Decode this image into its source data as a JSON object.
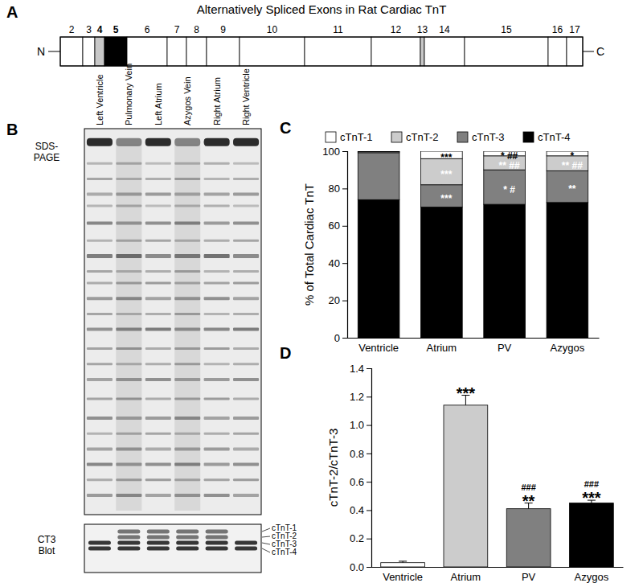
{
  "diagram": {
    "panel_label": "A",
    "title": "Alternatively Spliced Exons in Rat Cardiac TnT",
    "n_label": "N",
    "c_label": "C",
    "exons": [
      {
        "label": "2",
        "fill": "#ffffff",
        "bold": false
      },
      {
        "label": "3",
        "fill": "#ffffff",
        "bold": false
      },
      {
        "label": "4",
        "fill": "#c8c8c8",
        "bold": true
      },
      {
        "label": "5",
        "fill": "#000000",
        "bold": true
      },
      {
        "label": "6",
        "fill": "#ffffff",
        "bold": false
      },
      {
        "label": "7",
        "fill": "#ffffff",
        "bold": false
      },
      {
        "label": "8",
        "fill": "#ffffff",
        "bold": false
      },
      {
        "label": "9",
        "fill": "#ffffff",
        "bold": false
      },
      {
        "label": "10",
        "fill": "#ffffff",
        "bold": false
      },
      {
        "label": "11",
        "fill": "#ffffff",
        "bold": false
      },
      {
        "label": "12",
        "fill": "#ffffff",
        "bold": false
      },
      {
        "label": "13",
        "fill": "#c8c8c8",
        "bold": false
      },
      {
        "label": "14",
        "fill": "#ffffff",
        "bold": false
      },
      {
        "label": "15",
        "fill": "#ffffff",
        "bold": false
      },
      {
        "label": "16",
        "fill": "#ffffff",
        "bold": false
      },
      {
        "label": "17",
        "fill": "#ffffff",
        "bold": false
      }
    ]
  },
  "gel": {
    "panel_label": "B",
    "gel_label": [
      "SDS-",
      "PAGE"
    ],
    "blot_label": [
      "CT3",
      "Blot"
    ],
    "isoforms": [
      "cTnT-1",
      "cTnT-2",
      "cTnT-3",
      "cTnT-4"
    ],
    "lanes": [
      {
        "label": "Left Ventricle",
        "bands": [
          false,
          false,
          true,
          true
        ]
      },
      {
        "label": "Pulmonary Vein",
        "bands": [
          true,
          true,
          true,
          true
        ]
      },
      {
        "label": "Left Atrium",
        "bands": [
          true,
          true,
          true,
          true
        ]
      },
      {
        "label": "Azygos Vein",
        "bands": [
          true,
          true,
          true,
          true
        ]
      },
      {
        "label": "Right Atrium",
        "bands": [
          true,
          true,
          true,
          true
        ]
      },
      {
        "label": "Right Ventricle",
        "bands": [
          false,
          false,
          true,
          true
        ]
      }
    ]
  },
  "chart_data": [
    {
      "type": "bar",
      "stacked": true,
      "panel_label": "C",
      "y_label": "% of Total Cardiac TnT",
      "legend": "top",
      "categories": [
        "Ventricle",
        "Atrium",
        "PV",
        "Azygos"
      ],
      "ylim": [
        0,
        100
      ],
      "yticks": [
        0,
        20,
        40,
        60,
        80,
        100
      ],
      "series": [
        {
          "name": "cTnT-1",
          "color": "#ffffff",
          "values": [
            0.3,
            4,
            2.5,
            2.5
          ],
          "errors": [
            0.3,
            1,
            1.5,
            1
          ],
          "annotations": [
            null,
            "***",
            "* ##",
            "*"
          ]
        },
        {
          "name": "cTnT-2",
          "color": "#cccccc",
          "values": [
            0.5,
            14,
            7.5,
            8
          ],
          "errors": [
            0.3,
            2,
            1.5,
            1.5
          ],
          "annotations": [
            null,
            "***",
            "** ##",
            "** ##"
          ]
        },
        {
          "name": "cTnT-3",
          "color": "#808080",
          "values": [
            25.2,
            12,
            18.5,
            17
          ],
          "errors": [
            1,
            1.5,
            2,
            1.5
          ],
          "annotations": [
            null,
            "***",
            "* #",
            "**"
          ]
        },
        {
          "name": "cTnT-4",
          "color": "#000000",
          "values": [
            74,
            70,
            71.5,
            72.5
          ],
          "errors": [
            1,
            3,
            4,
            3
          ]
        }
      ]
    },
    {
      "type": "bar",
      "panel_label": "D",
      "y_label": "cTnT-2/cTnT-3",
      "categories": [
        "Ventricle",
        "Atrium",
        "PV",
        "Azygos"
      ],
      "values": [
        0.03,
        1.14,
        0.41,
        0.45
      ],
      "errors": [
        0.01,
        0.07,
        0.04,
        0.02
      ],
      "colors": [
        "#ffffff",
        "#cccccc",
        "#808080",
        "#000000"
      ],
      "ylim": [
        0,
        1.4
      ],
      "yticks": [
        {
          "value": 0,
          "label": "0.0"
        },
        0.2,
        0.4,
        0.6,
        0.8,
        {
          "value": 1,
          "label": "1.0"
        },
        1.2,
        1.4
      ],
      "annotations": [
        null,
        [
          "***"
        ],
        [
          "###",
          "**"
        ],
        [
          "###",
          "***"
        ]
      ]
    }
  ]
}
